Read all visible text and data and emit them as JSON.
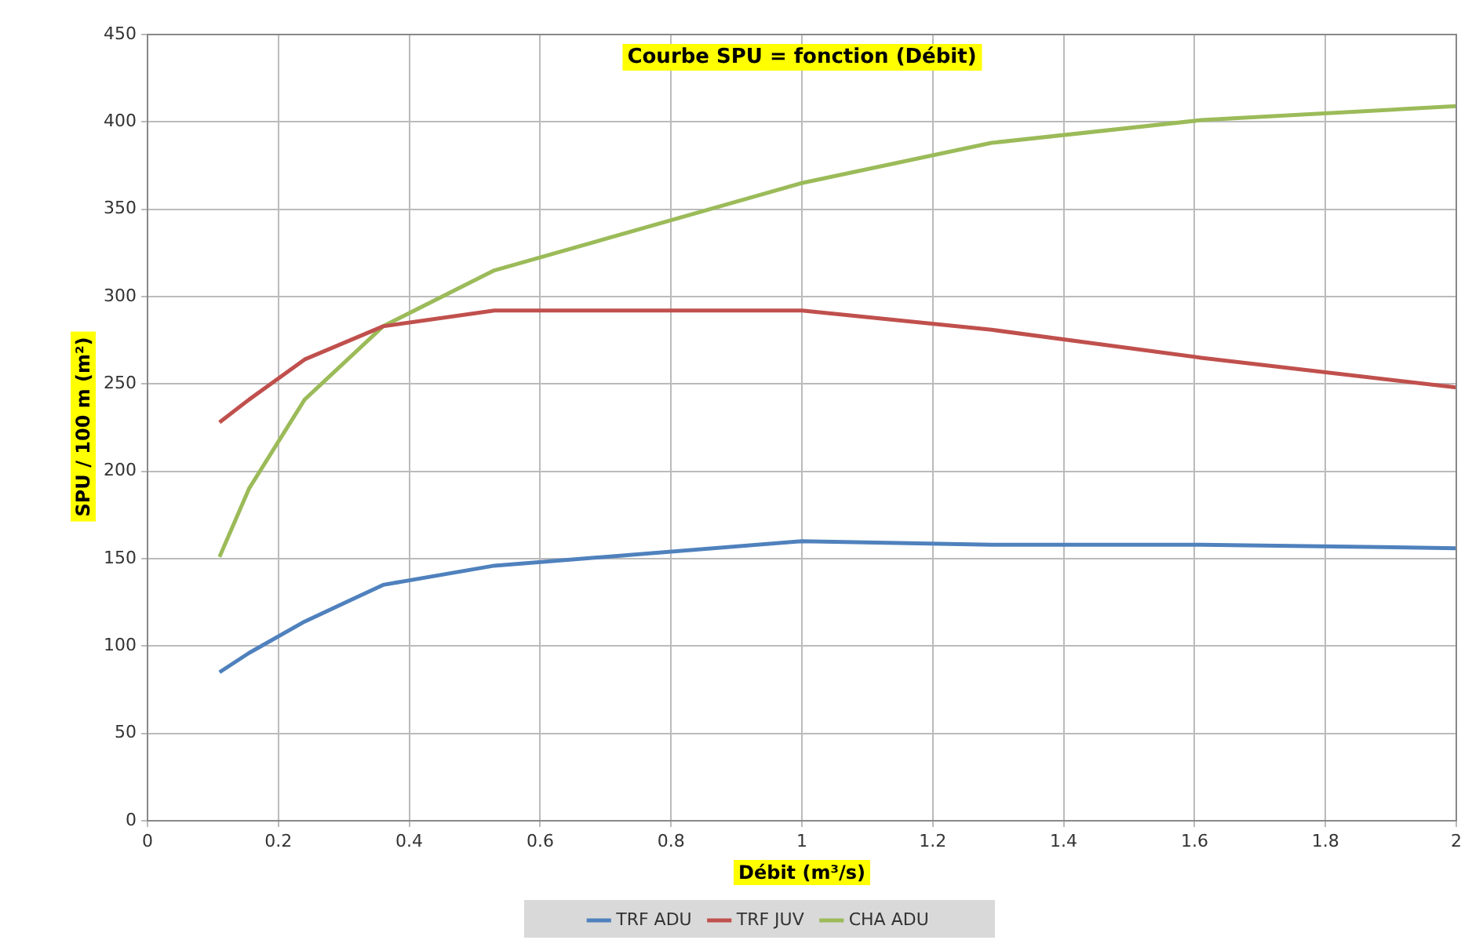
{
  "chart_data": {
    "type": "line",
    "title": "Courbe SPU = fonction (Débit)",
    "xlabel": "Débit (m³/s)",
    "ylabel": "SPU / 100 m (m²)",
    "x": [
      0.11,
      0.155,
      0.24,
      0.36,
      0.53,
      1.0,
      1.29,
      1.61,
      2.0
    ],
    "series": [
      {
        "name": "TRF ADU",
        "color": "#4f81bd",
        "values": [
          85,
          96,
          114,
          135,
          146,
          160,
          158,
          158,
          156
        ]
      },
      {
        "name": "TRF JUV",
        "color": "#c0504d",
        "values": [
          228,
          241,
          264,
          283,
          292,
          292,
          281,
          265,
          248
        ]
      },
      {
        "name": "CHA ADU",
        "color": "#9bbb59",
        "values": [
          151,
          190,
          241,
          283,
          315,
          365,
          388,
          401,
          409
        ]
      }
    ],
    "xlim": [
      0,
      2
    ],
    "xticks": [
      0,
      0.2,
      0.4,
      0.6,
      0.8,
      1,
      1.2,
      1.4,
      1.6,
      1.8,
      2
    ],
    "ylim": [
      0,
      450
    ],
    "yticks": [
      0,
      50,
      100,
      150,
      200,
      250,
      300,
      350,
      400,
      450
    ],
    "grid": true,
    "legend": "bottom",
    "marker": "none",
    "line_style": "solid"
  }
}
